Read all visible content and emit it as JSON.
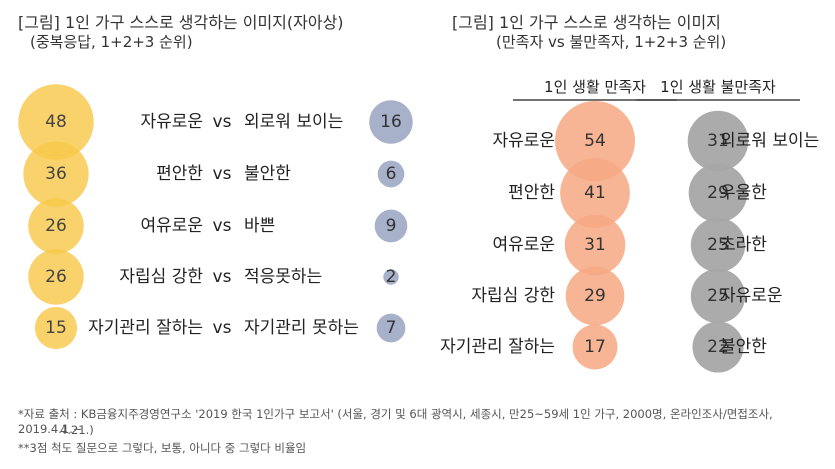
{
  "left_title": "[그림] 1인 가구 스스로 생각하는 이미지(자아상)",
  "left_subtitle": "(중복응답, 1+2+3 순위)",
  "right_title": "[그림] 1인 가구 스스로 생각하는 이미지",
  "right_subtitle": "(만족자 vs 불만족자, 1+2+3 순위)",
  "footnotes": [
    "*자료 출처 : KB금융지주경영연구소 '2019 한국 1인가구 보고서' (서울, 경기 및 6대 광역시, 세종시, 만25~59세 1인 가구, 2000명, 온라인조사/면접조사, 2019.4.1.~",
    "4.21.)",
    "**3점 척도 질문으로 그렇다, 보통, 아니다 중 그렇다 비율임"
  ],
  "colors": {
    "positive": "#F8C84A",
    "negative": "#9DA8C4",
    "satisfied": "#F6A882",
    "dissatisfied": "#A7A7A7"
  },
  "chart_data": [
    {
      "type": "bubble",
      "connector": "vs",
      "rows": [
        {
          "left_label": "자유로운",
          "left_value": 48,
          "right_label": "외로워 보이는",
          "right_value": 16
        },
        {
          "left_label": "편안한",
          "left_value": 36,
          "right_label": "불안한",
          "right_value": 6
        },
        {
          "left_label": "여유로운",
          "left_value": 26,
          "right_label": "바쁜",
          "right_value": 9
        },
        {
          "left_label": "자립심 강한",
          "left_value": 26,
          "right_label": "적응못하는",
          "right_value": 2
        },
        {
          "left_label": "자기관리 잘하는",
          "left_value": 15,
          "right_label": "자기관리 못하는",
          "right_value": 7
        }
      ]
    },
    {
      "type": "bubble",
      "series": [
        {
          "name": "1인 생활 만족자",
          "labels": [
            "자유로운",
            "편안한",
            "여유로운",
            "자립심 강한",
            "자기관리 잘하는"
          ],
          "values": [
            54,
            41,
            31,
            29,
            17
          ]
        },
        {
          "name": "1인 생활 불만족자",
          "labels": [
            "외로워 보이는",
            "우울한",
            "초라한",
            "자유로운",
            "불안한"
          ],
          "values": [
            31,
            29,
            25,
            25,
            22
          ]
        }
      ]
    }
  ]
}
